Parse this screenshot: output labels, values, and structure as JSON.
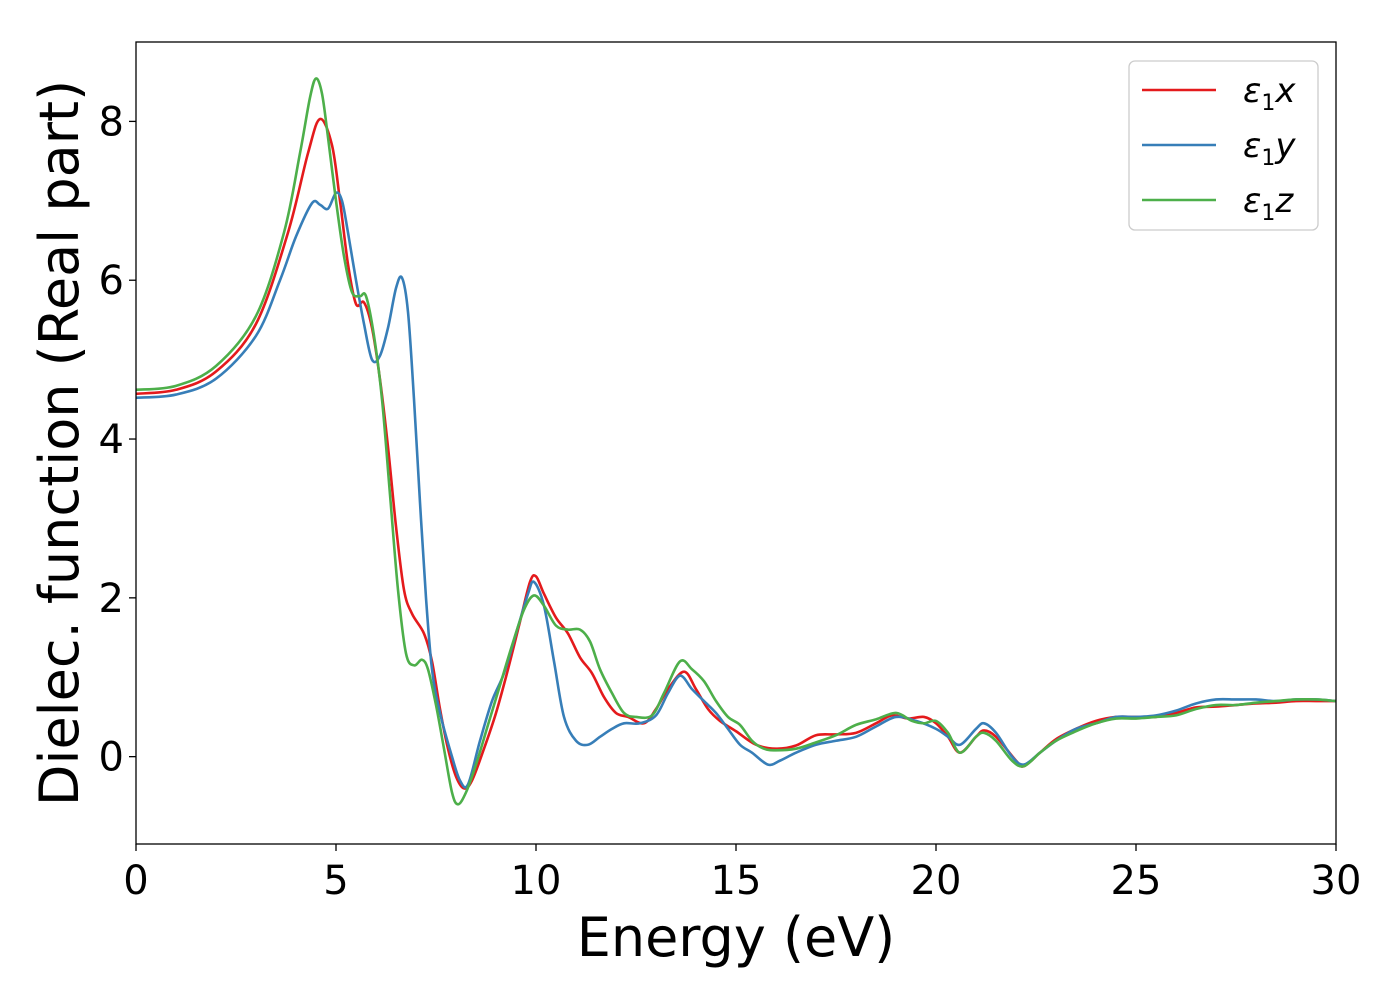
{
  "chart_data": {
    "type": "line",
    "xlabel": "Energy (eV)",
    "ylabel": "Dielec. function (Real part)",
    "xlim": [
      0,
      30
    ],
    "ylim": [
      -1.1,
      9.0
    ],
    "xticks": [
      0,
      5,
      10,
      15,
      20,
      25,
      30
    ],
    "yticks": [
      0,
      2,
      4,
      6,
      8
    ],
    "grid": false,
    "legend_position": "top-right",
    "series": [
      {
        "name": "ε1x",
        "legend": {
          "sym": "ε",
          "sub": "1",
          "axis": "x"
        },
        "color": "#e41a1c",
        "points": [
          [
            0,
            4.57
          ],
          [
            1,
            4.62
          ],
          [
            2,
            4.85
          ],
          [
            3,
            5.45
          ],
          [
            3.8,
            6.6
          ],
          [
            4.3,
            7.6
          ],
          [
            4.6,
            8.03
          ],
          [
            4.9,
            7.7
          ],
          [
            5.1,
            7.0
          ],
          [
            5.3,
            6.2
          ],
          [
            5.5,
            5.7
          ],
          [
            5.7,
            5.72
          ],
          [
            5.9,
            5.4
          ],
          [
            6.1,
            4.75
          ],
          [
            6.3,
            3.9
          ],
          [
            6.5,
            2.9
          ],
          [
            6.7,
            2.1
          ],
          [
            6.9,
            1.8
          ],
          [
            7.2,
            1.55
          ],
          [
            7.4,
            1.2
          ],
          [
            7.6,
            0.6
          ],
          [
            7.8,
            0.1
          ],
          [
            8.0,
            -0.25
          ],
          [
            8.2,
            -0.4
          ],
          [
            8.4,
            -0.3
          ],
          [
            8.7,
            0.1
          ],
          [
            9.0,
            0.55
          ],
          [
            9.3,
            1.1
          ],
          [
            9.6,
            1.7
          ],
          [
            9.85,
            2.2
          ],
          [
            10.0,
            2.27
          ],
          [
            10.2,
            2.05
          ],
          [
            10.5,
            1.75
          ],
          [
            10.8,
            1.55
          ],
          [
            11.1,
            1.25
          ],
          [
            11.4,
            1.05
          ],
          [
            11.7,
            0.75
          ],
          [
            12.0,
            0.55
          ],
          [
            12.3,
            0.5
          ],
          [
            12.7,
            0.42
          ],
          [
            13.0,
            0.6
          ],
          [
            13.3,
            0.85
          ],
          [
            13.7,
            1.07
          ],
          [
            14.0,
            0.85
          ],
          [
            14.3,
            0.6
          ],
          [
            14.6,
            0.45
          ],
          [
            15.0,
            0.32
          ],
          [
            15.5,
            0.15
          ],
          [
            16.0,
            0.1
          ],
          [
            16.5,
            0.14
          ],
          [
            17.0,
            0.27
          ],
          [
            17.5,
            0.28
          ],
          [
            18.0,
            0.3
          ],
          [
            18.5,
            0.42
          ],
          [
            18.9,
            0.52
          ],
          [
            19.3,
            0.48
          ],
          [
            19.7,
            0.5
          ],
          [
            20.0,
            0.42
          ],
          [
            20.3,
            0.25
          ],
          [
            20.6,
            0.05
          ],
          [
            21.0,
            0.25
          ],
          [
            21.2,
            0.33
          ],
          [
            21.5,
            0.25
          ],
          [
            22.0,
            -0.05
          ],
          [
            22.2,
            -0.12
          ],
          [
            22.6,
            0.05
          ],
          [
            23.0,
            0.22
          ],
          [
            23.5,
            0.35
          ],
          [
            24.0,
            0.45
          ],
          [
            24.5,
            0.5
          ],
          [
            25.0,
            0.5
          ],
          [
            25.5,
            0.5
          ],
          [
            26.0,
            0.55
          ],
          [
            26.5,
            0.62
          ],
          [
            27.0,
            0.63
          ],
          [
            27.5,
            0.65
          ],
          [
            28.0,
            0.67
          ],
          [
            28.5,
            0.68
          ],
          [
            29.0,
            0.7
          ],
          [
            29.5,
            0.7
          ],
          [
            30.0,
            0.7
          ]
        ]
      },
      {
        "name": "ε1y",
        "legend": {
          "sym": "ε",
          "sub": "1",
          "axis": "y"
        },
        "color": "#377eb8",
        "points": [
          [
            0,
            4.52
          ],
          [
            1,
            4.56
          ],
          [
            2,
            4.76
          ],
          [
            3,
            5.3
          ],
          [
            3.6,
            6.0
          ],
          [
            4.0,
            6.55
          ],
          [
            4.4,
            6.97
          ],
          [
            4.6,
            6.95
          ],
          [
            4.8,
            6.9
          ],
          [
            5.0,
            7.1
          ],
          [
            5.15,
            7.0
          ],
          [
            5.3,
            6.6
          ],
          [
            5.5,
            6.0
          ],
          [
            5.7,
            5.45
          ],
          [
            5.9,
            5.0
          ],
          [
            6.1,
            5.05
          ],
          [
            6.3,
            5.4
          ],
          [
            6.5,
            5.9
          ],
          [
            6.65,
            6.03
          ],
          [
            6.8,
            5.6
          ],
          [
            6.95,
            4.5
          ],
          [
            7.1,
            3.2
          ],
          [
            7.25,
            2.0
          ],
          [
            7.4,
            1.1
          ],
          [
            7.6,
            0.55
          ],
          [
            7.9,
            0.0
          ],
          [
            8.1,
            -0.3
          ],
          [
            8.3,
            -0.35
          ],
          [
            8.6,
            0.2
          ],
          [
            8.9,
            0.7
          ],
          [
            9.2,
            1.05
          ],
          [
            9.5,
            1.55
          ],
          [
            9.8,
            2.05
          ],
          [
            9.95,
            2.2
          ],
          [
            10.2,
            1.9
          ],
          [
            10.45,
            1.2
          ],
          [
            10.7,
            0.5
          ],
          [
            11.0,
            0.2
          ],
          [
            11.3,
            0.15
          ],
          [
            11.6,
            0.25
          ],
          [
            11.9,
            0.35
          ],
          [
            12.2,
            0.42
          ],
          [
            12.6,
            0.42
          ],
          [
            13.0,
            0.52
          ],
          [
            13.3,
            0.8
          ],
          [
            13.6,
            1.02
          ],
          [
            13.9,
            0.85
          ],
          [
            14.2,
            0.7
          ],
          [
            14.5,
            0.55
          ],
          [
            14.8,
            0.35
          ],
          [
            15.1,
            0.15
          ],
          [
            15.4,
            0.05
          ],
          [
            15.8,
            -0.1
          ],
          [
            16.1,
            -0.05
          ],
          [
            16.5,
            0.05
          ],
          [
            17.0,
            0.15
          ],
          [
            17.5,
            0.2
          ],
          [
            18.0,
            0.25
          ],
          [
            18.5,
            0.38
          ],
          [
            19.0,
            0.5
          ],
          [
            19.5,
            0.45
          ],
          [
            20.0,
            0.35
          ],
          [
            20.3,
            0.25
          ],
          [
            20.6,
            0.15
          ],
          [
            21.0,
            0.35
          ],
          [
            21.2,
            0.42
          ],
          [
            21.5,
            0.3
          ],
          [
            21.9,
            0.0
          ],
          [
            22.2,
            -0.1
          ],
          [
            22.6,
            0.05
          ],
          [
            23.0,
            0.2
          ],
          [
            23.5,
            0.35
          ],
          [
            24.0,
            0.42
          ],
          [
            24.5,
            0.5
          ],
          [
            25.0,
            0.5
          ],
          [
            25.5,
            0.52
          ],
          [
            26.0,
            0.58
          ],
          [
            26.5,
            0.67
          ],
          [
            27.0,
            0.72
          ],
          [
            27.5,
            0.72
          ],
          [
            28.0,
            0.72
          ],
          [
            28.5,
            0.7
          ],
          [
            29.0,
            0.72
          ],
          [
            29.5,
            0.72
          ],
          [
            30.0,
            0.7
          ]
        ]
      },
      {
        "name": "ε1z",
        "legend": {
          "sym": "ε",
          "sub": "1",
          "axis": "z"
        },
        "color": "#4daf4a",
        "points": [
          [
            0,
            4.62
          ],
          [
            1,
            4.67
          ],
          [
            2,
            4.92
          ],
          [
            3,
            5.55
          ],
          [
            3.7,
            6.6
          ],
          [
            4.1,
            7.6
          ],
          [
            4.35,
            8.3
          ],
          [
            4.5,
            8.54
          ],
          [
            4.65,
            8.35
          ],
          [
            4.8,
            7.8
          ],
          [
            5.0,
            7.0
          ],
          [
            5.2,
            6.3
          ],
          [
            5.4,
            5.85
          ],
          [
            5.6,
            5.8
          ],
          [
            5.75,
            5.8
          ],
          [
            5.95,
            5.3
          ],
          [
            6.15,
            4.5
          ],
          [
            6.35,
            3.3
          ],
          [
            6.55,
            2.1
          ],
          [
            6.75,
            1.3
          ],
          [
            6.95,
            1.15
          ],
          [
            7.15,
            1.22
          ],
          [
            7.3,
            1.1
          ],
          [
            7.5,
            0.65
          ],
          [
            7.7,
            0.1
          ],
          [
            7.9,
            -0.45
          ],
          [
            8.05,
            -0.6
          ],
          [
            8.25,
            -0.45
          ],
          [
            8.5,
            -0.1
          ],
          [
            8.8,
            0.4
          ],
          [
            9.1,
            0.9
          ],
          [
            9.4,
            1.4
          ],
          [
            9.7,
            1.85
          ],
          [
            9.95,
            2.03
          ],
          [
            10.2,
            1.9
          ],
          [
            10.5,
            1.65
          ],
          [
            10.8,
            1.6
          ],
          [
            11.1,
            1.6
          ],
          [
            11.35,
            1.45
          ],
          [
            11.6,
            1.1
          ],
          [
            11.9,
            0.8
          ],
          [
            12.2,
            0.55
          ],
          [
            12.5,
            0.5
          ],
          [
            12.9,
            0.52
          ],
          [
            13.2,
            0.8
          ],
          [
            13.6,
            1.2
          ],
          [
            13.9,
            1.1
          ],
          [
            14.2,
            0.95
          ],
          [
            14.5,
            0.7
          ],
          [
            14.8,
            0.5
          ],
          [
            15.1,
            0.4
          ],
          [
            15.4,
            0.2
          ],
          [
            15.7,
            0.1
          ],
          [
            16.0,
            0.08
          ],
          [
            16.5,
            0.1
          ],
          [
            17.0,
            0.18
          ],
          [
            17.5,
            0.27
          ],
          [
            18.0,
            0.4
          ],
          [
            18.5,
            0.47
          ],
          [
            19.0,
            0.55
          ],
          [
            19.4,
            0.45
          ],
          [
            19.7,
            0.42
          ],
          [
            20.0,
            0.45
          ],
          [
            20.3,
            0.3
          ],
          [
            20.6,
            0.05
          ],
          [
            21.0,
            0.25
          ],
          [
            21.2,
            0.3
          ],
          [
            21.5,
            0.2
          ],
          [
            21.9,
            -0.05
          ],
          [
            22.2,
            -0.12
          ],
          [
            22.6,
            0.05
          ],
          [
            23.0,
            0.2
          ],
          [
            23.5,
            0.32
          ],
          [
            24.0,
            0.42
          ],
          [
            24.5,
            0.48
          ],
          [
            25.0,
            0.48
          ],
          [
            25.5,
            0.5
          ],
          [
            26.0,
            0.52
          ],
          [
            26.5,
            0.6
          ],
          [
            27.0,
            0.65
          ],
          [
            27.5,
            0.65
          ],
          [
            28.0,
            0.68
          ],
          [
            28.5,
            0.7
          ],
          [
            29.0,
            0.72
          ],
          [
            29.5,
            0.72
          ],
          [
            30.0,
            0.7
          ]
        ]
      }
    ]
  }
}
